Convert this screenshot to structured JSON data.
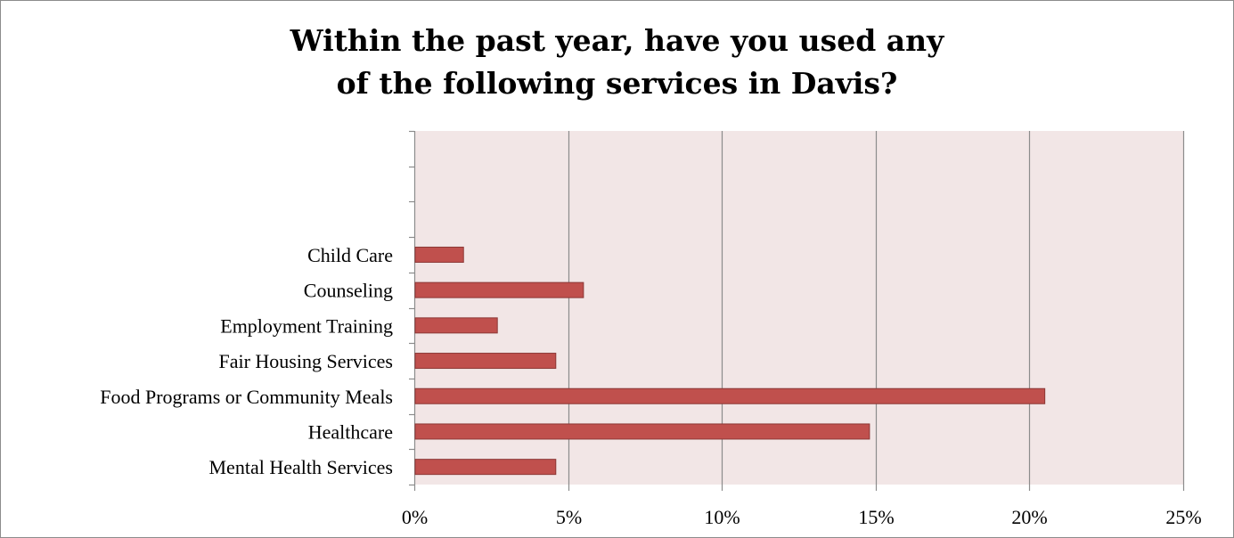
{
  "chart_data": {
    "type": "bar",
    "orientation": "horizontal",
    "title_lines": [
      "Within the past year, have you used any",
      "of the following services in Davis?"
    ],
    "categories": [
      "Child Care",
      "Counseling",
      "Employment Training",
      "Fair Housing Services",
      "Food Programs or Community Meals",
      "Healthcare",
      "Mental Health Services"
    ],
    "values": [
      1.6,
      5.5,
      2.7,
      4.6,
      20.5,
      14.8,
      4.6
    ],
    "xlim": [
      0,
      25
    ],
    "x_ticks": [
      0,
      5,
      10,
      15,
      20,
      25
    ],
    "x_tick_labels": [
      "0%",
      "5%",
      "10%",
      "15%",
      "20%",
      "25%"
    ],
    "empty_slots_above": 3,
    "grid": "vertical",
    "legend": "none",
    "colors": {
      "bar_fill": "#c0504d",
      "bar_stroke": "#8c3836",
      "plot_background": "#f2e6e6",
      "gridline": "#8c8c8c",
      "axis": "#8c8c8c"
    }
  }
}
